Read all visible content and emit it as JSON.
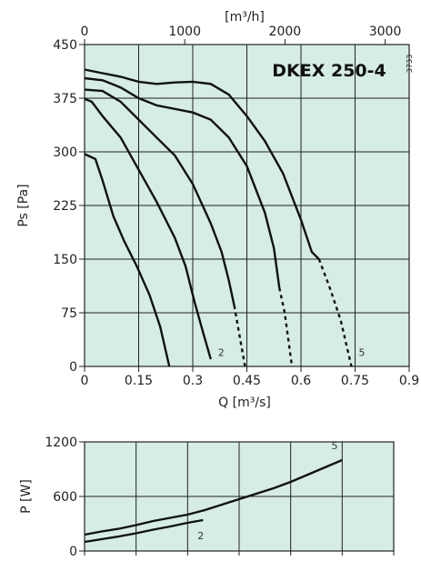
{
  "chart_data": [
    {
      "type": "line",
      "title": "DKEX 250-4",
      "code": "3733",
      "xlabel": "Q [m³/s]",
      "ylabel": "Ps [Pa]",
      "x2label": "[m³/h]",
      "xlim": [
        0,
        0.9
      ],
      "ylim": [
        0,
        450
      ],
      "x2lim": [
        0,
        3240
      ],
      "xticks": [
        "0",
        "0.15",
        "0.3",
        "0.45",
        "0.6",
        "0.75",
        "0.9"
      ],
      "yticks": [
        "0",
        "75",
        "150",
        "225",
        "300",
        "375",
        "450"
      ],
      "x2ticks": [
        "0",
        "1000",
        "2000",
        "3000"
      ],
      "grid": true,
      "curve_labels": [
        {
          "text": "2",
          "x": 0.365,
          "y": 12
        },
        {
          "text": "5",
          "x": 0.755,
          "y": 12
        }
      ],
      "series": [
        {
          "points": [
            [
              0,
              297
            ],
            [
              0.03,
              290
            ],
            [
              0.05,
              260
            ],
            [
              0.08,
              210
            ],
            [
              0.11,
              175
            ],
            [
              0.145,
              140
            ],
            [
              0.18,
              100
            ],
            [
              0.21,
              55
            ],
            [
              0.235,
              0
            ]
          ],
          "dashed_from": null
        },
        {
          "points": [
            [
              0,
              374
            ],
            [
              0.02,
              370
            ],
            [
              0.05,
              350
            ],
            [
              0.1,
              320
            ],
            [
              0.15,
              275
            ],
            [
              0.2,
              230
            ],
            [
              0.25,
              180
            ],
            [
              0.28,
              140
            ],
            [
              0.305,
              90
            ],
            [
              0.33,
              45
            ],
            [
              0.35,
              10
            ]
          ],
          "dashed_from": null
        },
        {
          "points": [
            [
              0,
              387
            ],
            [
              0.05,
              385
            ],
            [
              0.1,
              370
            ],
            [
              0.15,
              345
            ],
            [
              0.2,
              320
            ],
            [
              0.25,
              295
            ],
            [
              0.3,
              255
            ],
            [
              0.35,
              200
            ],
            [
              0.38,
              160
            ],
            [
              0.4,
              120
            ],
            [
              0.415,
              85
            ],
            [
              0.43,
              42
            ],
            [
              0.445,
              0
            ]
          ],
          "dashed_from": 0.415
        },
        {
          "points": [
            [
              0,
              403
            ],
            [
              0.05,
              400
            ],
            [
              0.1,
              390
            ],
            [
              0.15,
              375
            ],
            [
              0.2,
              365
            ],
            [
              0.3,
              355
            ],
            [
              0.35,
              345
            ],
            [
              0.4,
              320
            ],
            [
              0.45,
              280
            ],
            [
              0.5,
              215
            ],
            [
              0.525,
              165
            ],
            [
              0.54,
              110
            ],
            [
              0.555,
              75
            ],
            [
              0.575,
              0
            ]
          ],
          "dashed_from": 0.54
        },
        {
          "points": [
            [
              0,
              415
            ],
            [
              0.05,
              410
            ],
            [
              0.1,
              405
            ],
            [
              0.15,
              398
            ],
            [
              0.2,
              395
            ],
            [
              0.25,
              397
            ],
            [
              0.3,
              398
            ],
            [
              0.35,
              395
            ],
            [
              0.4,
              380
            ],
            [
              0.45,
              350
            ],
            [
              0.5,
              315
            ],
            [
              0.55,
              270
            ],
            [
              0.6,
              205
            ],
            [
              0.63,
              160
            ],
            [
              0.65,
              150
            ],
            [
              0.68,
              110
            ],
            [
              0.71,
              65
            ],
            [
              0.74,
              0
            ]
          ],
          "dashed_from": 0.65
        }
      ]
    },
    {
      "type": "line",
      "ylabel": "P [W]",
      "xlim": [
        0,
        0.9
      ],
      "ylim": [
        0,
        1200
      ],
      "yticks": [
        "0",
        "600",
        "1200"
      ],
      "grid": true,
      "curve_labels": [
        {
          "text": "2",
          "x": 0.35,
          "y": 130
        },
        {
          "text": "5",
          "x": 0.74,
          "y": 1120
        }
      ],
      "series": [
        {
          "points": [
            [
              0,
              100
            ],
            [
              0.05,
              130
            ],
            [
              0.1,
              160
            ],
            [
              0.15,
              195
            ],
            [
              0.2,
              235
            ],
            [
              0.25,
              270
            ],
            [
              0.3,
              310
            ],
            [
              0.345,
              340
            ]
          ]
        },
        {
          "points": [
            [
              0,
              180
            ],
            [
              0.05,
              215
            ],
            [
              0.1,
              245
            ],
            [
              0.15,
              285
            ],
            [
              0.2,
              330
            ],
            [
              0.25,
              365
            ],
            [
              0.3,
              400
            ],
            [
              0.35,
              450
            ],
            [
              0.4,
              510
            ],
            [
              0.45,
              570
            ],
            [
              0.5,
              630
            ],
            [
              0.55,
              690
            ],
            [
              0.6,
              760
            ],
            [
              0.65,
              840
            ],
            [
              0.7,
              920
            ],
            [
              0.75,
              1000
            ]
          ]
        }
      ]
    }
  ]
}
